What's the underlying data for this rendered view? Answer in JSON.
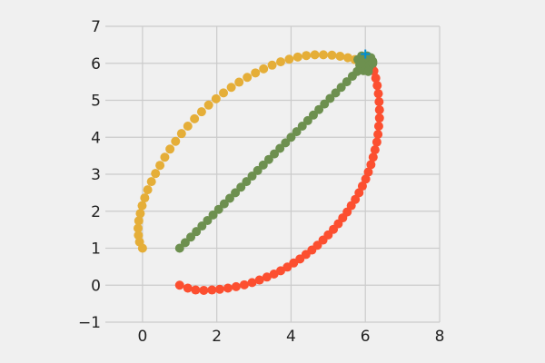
{
  "chart_data": {
    "type": "scatter",
    "title": "",
    "xlabel": "",
    "ylabel": "",
    "xlim": [
      -1,
      8
    ],
    "ylim": [
      -1,
      7
    ],
    "xticks": [
      0,
      2,
      4,
      6,
      8
    ],
    "yticks": [
      -1,
      0,
      1,
      2,
      3,
      4,
      5,
      6,
      7
    ],
    "xtick_labels": [
      "0",
      "2",
      "4",
      "6",
      "8"
    ],
    "ytick_labels": [
      "−1",
      "0",
      "1",
      "2",
      "3",
      "4",
      "5",
      "6",
      "7"
    ],
    "grid": true,
    "series": [
      {
        "color": "#fc4f30",
        "x": [
          1.0,
          1.22,
          1.43,
          1.65,
          1.87,
          2.08,
          2.3,
          2.52,
          2.74,
          2.95,
          3.15,
          3.35,
          3.54,
          3.72,
          3.9,
          4.07,
          4.24,
          4.4,
          4.56,
          4.71,
          4.86,
          5.0,
          5.14,
          5.27,
          5.39,
          5.51,
          5.62,
          5.73,
          5.83,
          5.92,
          6.01,
          6.08,
          6.15,
          6.21,
          6.26,
          6.31,
          6.34,
          6.36,
          6.38,
          6.38,
          6.37,
          6.35,
          6.32,
          6.28,
          6.23,
          6.18,
          6.12,
          6.06
        ],
        "y": [
          0.0,
          -0.08,
          -0.13,
          -0.14,
          -0.13,
          -0.11,
          -0.08,
          -0.04,
          0.01,
          0.07,
          0.14,
          0.22,
          0.3,
          0.39,
          0.49,
          0.6,
          0.71,
          0.83,
          0.95,
          1.08,
          1.22,
          1.36,
          1.51,
          1.66,
          1.82,
          1.98,
          2.15,
          2.32,
          2.5,
          2.68,
          2.87,
          3.06,
          3.26,
          3.46,
          3.66,
          3.87,
          4.08,
          4.3,
          4.52,
          4.74,
          4.96,
          5.18,
          5.4,
          5.6,
          5.79,
          5.95,
          6.06,
          6.1
        ]
      },
      {
        "color": "#e5ae38",
        "x": [
          0.0,
          -0.08,
          -0.11,
          -0.12,
          -0.1,
          -0.06,
          -0.01,
          0.06,
          0.14,
          0.24,
          0.35,
          0.47,
          0.6,
          0.74,
          0.89,
          1.05,
          1.22,
          1.4,
          1.59,
          1.78,
          1.98,
          2.18,
          2.39,
          2.6,
          2.82,
          3.04,
          3.26,
          3.49,
          3.72,
          3.95,
          4.18,
          4.41,
          4.64,
          4.87,
          5.1,
          5.32,
          5.53,
          5.72,
          5.88,
          6.0,
          6.06
        ],
        "y": [
          1.0,
          1.17,
          1.35,
          1.54,
          1.74,
          1.94,
          2.15,
          2.36,
          2.58,
          2.8,
          3.02,
          3.24,
          3.46,
          3.68,
          3.89,
          4.1,
          4.3,
          4.5,
          4.69,
          4.87,
          5.04,
          5.2,
          5.35,
          5.49,
          5.62,
          5.74,
          5.85,
          5.95,
          6.04,
          6.11,
          6.17,
          6.21,
          6.23,
          6.23,
          6.22,
          6.19,
          6.15,
          6.1,
          6.06,
          6.04,
          6.05
        ]
      },
      {
        "color": "#6d904f",
        "x": [
          1.0,
          1.15,
          1.3,
          1.45,
          1.6,
          1.75,
          1.9,
          2.05,
          2.2,
          2.35,
          2.5,
          2.65,
          2.8,
          2.95,
          3.1,
          3.25,
          3.4,
          3.55,
          3.7,
          3.85,
          4.0,
          4.15,
          4.3,
          4.45,
          4.6,
          4.75,
          4.9,
          5.05,
          5.2,
          5.35,
          5.5,
          5.65,
          5.78,
          5.88,
          5.95,
          6.0,
          6.03,
          6.06
        ],
        "y": [
          1.0,
          1.15,
          1.3,
          1.45,
          1.6,
          1.75,
          1.9,
          2.05,
          2.2,
          2.35,
          2.5,
          2.65,
          2.8,
          2.95,
          3.1,
          3.25,
          3.4,
          3.55,
          3.7,
          3.85,
          4.0,
          4.15,
          4.3,
          4.45,
          4.6,
          4.75,
          4.9,
          5.05,
          5.2,
          5.35,
          5.5,
          5.65,
          5.78,
          5.88,
          5.95,
          6.0,
          6.03,
          6.06
        ]
      },
      {
        "color": "#6d904f",
        "x": [
          5.9,
          6.15,
          6.1,
          5.85,
          6.2,
          5.95,
          6.05,
          5.8,
          6.0,
          6.12,
          5.9,
          6.2,
          5.95,
          6.08,
          5.88
        ],
        "y": [
          6.2,
          6.15,
          5.9,
          5.95,
          6.05,
          5.8,
          6.2,
          6.1,
          5.85,
          5.95,
          6.08,
          6.0,
          6.12,
          5.78,
          6.0
        ]
      }
    ],
    "markers": [
      {
        "color": "#008fd5",
        "x": 6.0,
        "y": 6.25,
        "shape": "plus"
      }
    ]
  }
}
